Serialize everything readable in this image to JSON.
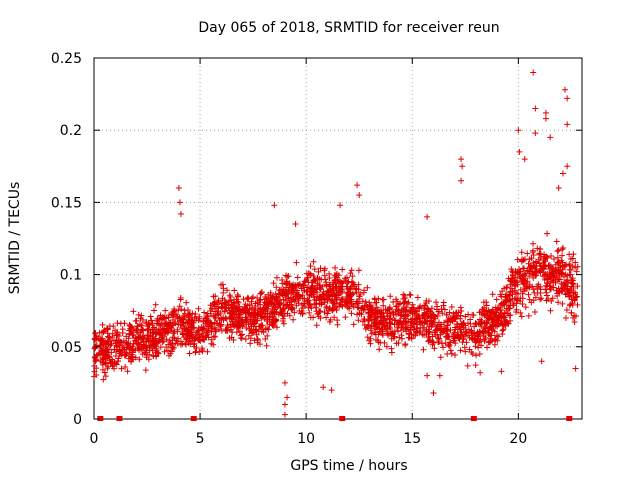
{
  "chart_data": {
    "type": "scatter",
    "title": "Day 065 of 2018, SRMTID for receiver reun",
    "xlabel": "GPS time / hours",
    "ylabel": "SRMTID / TECUs",
    "xlim": [
      0,
      23
    ],
    "ylim": [
      0,
      0.25
    ],
    "x_ticks": [
      {
        "value": 0,
        "label": "0"
      },
      {
        "value": 5,
        "label": "5"
      },
      {
        "value": 10,
        "label": "10"
      },
      {
        "value": 15,
        "label": "15"
      },
      {
        "value": 20,
        "label": "20"
      }
    ],
    "y_ticks": [
      {
        "value": 0,
        "label": "0"
      },
      {
        "value": 0.05,
        "label": "0.05"
      },
      {
        "value": 0.1,
        "label": "0.1"
      },
      {
        "value": 0.15,
        "label": "0.15"
      },
      {
        "value": 0.2,
        "label": "0.2"
      },
      {
        "value": 0.25,
        "label": "0.25"
      }
    ],
    "grid": true,
    "marker": "+",
    "color": "#e00000",
    "trend": [
      [
        0.0,
        0.045
      ],
      [
        1.0,
        0.048
      ],
      [
        2.0,
        0.055
      ],
      [
        3.0,
        0.058
      ],
      [
        4.0,
        0.065
      ],
      [
        5.0,
        0.06
      ],
      [
        6.0,
        0.075
      ],
      [
        7.0,
        0.07
      ],
      [
        8.0,
        0.072
      ],
      [
        9.0,
        0.085
      ],
      [
        10.0,
        0.088
      ],
      [
        11.0,
        0.085
      ],
      [
        12.0,
        0.088
      ],
      [
        13.0,
        0.07
      ],
      [
        14.0,
        0.068
      ],
      [
        15.0,
        0.07
      ],
      [
        16.0,
        0.065
      ],
      [
        17.0,
        0.062
      ],
      [
        18.0,
        0.058
      ],
      [
        19.0,
        0.068
      ],
      [
        20.0,
        0.095
      ],
      [
        21.0,
        0.1
      ],
      [
        22.0,
        0.098
      ],
      [
        22.8,
        0.09
      ]
    ],
    "spikes": [
      [
        4.0,
        0.16
      ],
      [
        4.05,
        0.15
      ],
      [
        4.1,
        0.142
      ],
      [
        8.5,
        0.148
      ],
      [
        9.5,
        0.135
      ],
      [
        11.6,
        0.148
      ],
      [
        12.4,
        0.162
      ],
      [
        12.5,
        0.155
      ],
      [
        15.7,
        0.14
      ],
      [
        17.3,
        0.18
      ],
      [
        17.35,
        0.175
      ],
      [
        17.3,
        0.165
      ],
      [
        20.0,
        0.2
      ],
      [
        20.05,
        0.185
      ],
      [
        20.3,
        0.18
      ],
      [
        20.7,
        0.24
      ],
      [
        20.8,
        0.215
      ],
      [
        21.3,
        0.212
      ],
      [
        21.3,
        0.208
      ],
      [
        21.5,
        0.195
      ],
      [
        22.2,
        0.228
      ],
      [
        22.3,
        0.222
      ],
      [
        22.3,
        0.204
      ],
      [
        22.1,
        0.17
      ],
      [
        22.3,
        0.175
      ],
      [
        21.9,
        0.16
      ],
      [
        20.8,
        0.198
      ]
    ],
    "low_outliers": [
      [
        9.0,
        0.003
      ],
      [
        9.0,
        0.01
      ],
      [
        9.1,
        0.015
      ],
      [
        9.0,
        0.025
      ],
      [
        10.8,
        0.022
      ],
      [
        11.2,
        0.02
      ],
      [
        16.0,
        0.018
      ],
      [
        15.7,
        0.03
      ],
      [
        16.3,
        0.03
      ],
      [
        18.2,
        0.032
      ],
      [
        19.2,
        0.033
      ],
      [
        21.1,
        0.04
      ],
      [
        22.7,
        0.035
      ]
    ],
    "data_gaps_hours": [
      0.3,
      1.2,
      4.7,
      11.7,
      17.9,
      22.4
    ]
  }
}
